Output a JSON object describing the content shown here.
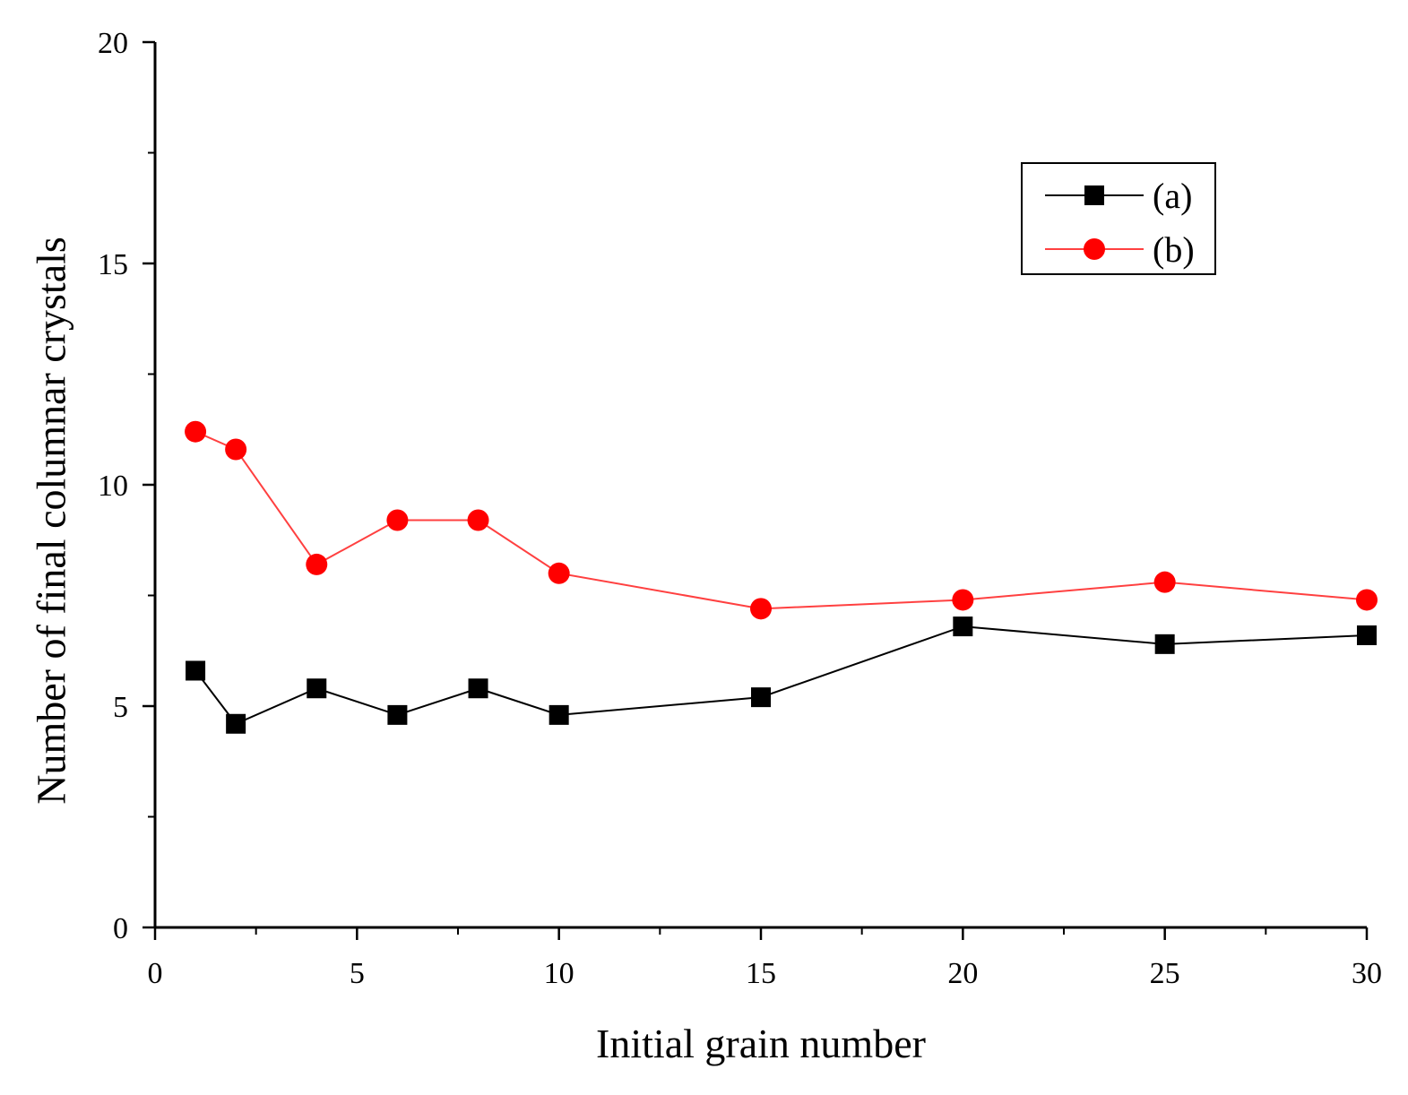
{
  "chart_data": {
    "type": "line",
    "title": "",
    "xlabel": "Initial grain number",
    "ylabel": "Number of final columnar crystals",
    "xlim": [
      0,
      30
    ],
    "ylim": [
      0,
      20
    ],
    "x_ticks": [
      0,
      5,
      10,
      15,
      20,
      25,
      30
    ],
    "y_ticks": [
      0,
      5,
      10,
      15,
      20
    ],
    "grid": false,
    "legend_position": "top-right",
    "x": [
      1,
      2,
      4,
      6,
      8,
      10,
      15,
      20,
      25,
      30
    ],
    "series": [
      {
        "name": "(a)",
        "marker": "square",
        "color": "#000000",
        "line_color": "#000000",
        "values": [
          5.8,
          4.6,
          5.4,
          4.8,
          5.4,
          4.8,
          5.2,
          6.8,
          6.4,
          6.6
        ]
      },
      {
        "name": "(b)",
        "marker": "circle",
        "color": "#ff0000",
        "line_color": "#ff4040",
        "values": [
          11.2,
          10.8,
          8.2,
          9.2,
          9.2,
          8.0,
          7.2,
          7.4,
          7.8,
          7.4
        ]
      }
    ]
  }
}
